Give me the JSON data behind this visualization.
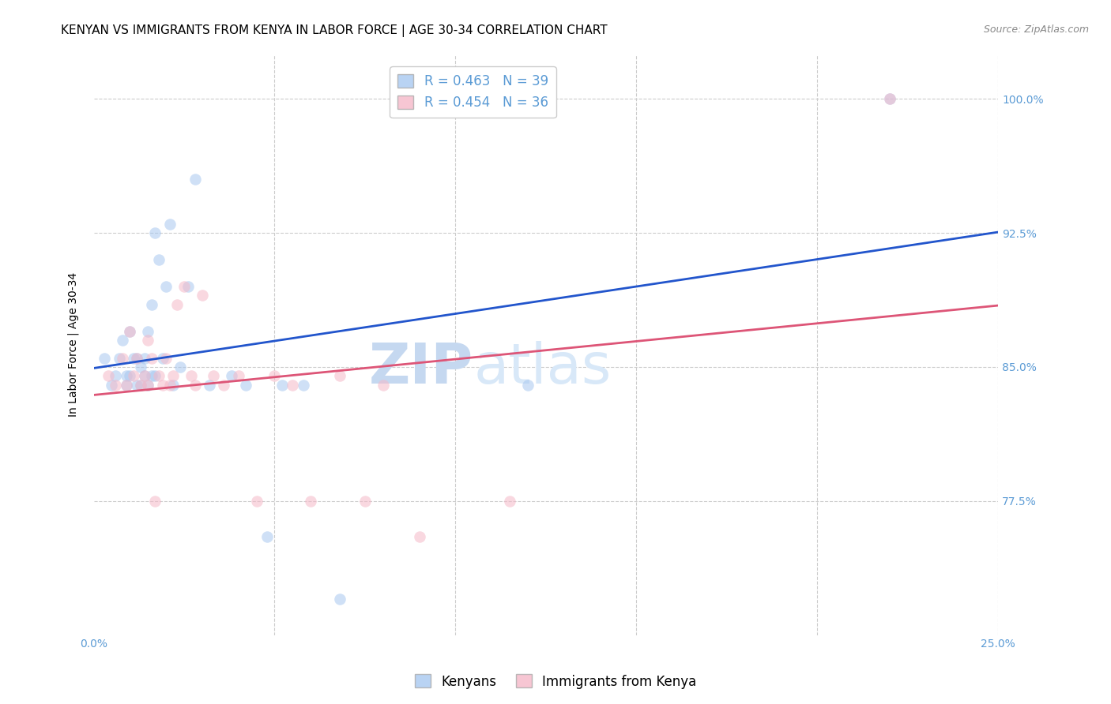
{
  "title": "KENYAN VS IMMIGRANTS FROM KENYA IN LABOR FORCE | AGE 30-34 CORRELATION CHART",
  "source": "Source: ZipAtlas.com",
  "ylabel": "In Labor Force | Age 30-34",
  "xlim": [
    0.0,
    0.25
  ],
  "ylim": [
    0.7,
    1.025
  ],
  "watermark_zip": "ZIP",
  "watermark_atlas": "atlas",
  "legend_blue_r": "R = 0.463",
  "legend_blue_n": "N = 39",
  "legend_pink_r": "R = 0.454",
  "legend_pink_n": "N = 36",
  "blue_color": "#a8c8f0",
  "pink_color": "#f5b8c8",
  "blue_line_color": "#2255cc",
  "pink_line_color": "#dd5577",
  "grid_color": "#cccccc",
  "background_color": "#ffffff",
  "title_fontsize": 11,
  "axis_label_fontsize": 10,
  "tick_fontsize": 10,
  "legend_fontsize": 12,
  "watermark_zip_fontsize": 52,
  "watermark_atlas_fontsize": 52,
  "watermark_color": "#ddeeff",
  "source_fontsize": 9,
  "marker_size": 110,
  "ytick_vals": [
    0.775,
    0.85,
    0.925,
    1.0
  ],
  "ytick_labels": [
    "77.5%",
    "85.0%",
    "92.5%",
    "100.0%"
  ],
  "kenyans_x": [
    0.003,
    0.005,
    0.006,
    0.007,
    0.008,
    0.009,
    0.009,
    0.01,
    0.01,
    0.011,
    0.012,
    0.012,
    0.013,
    0.013,
    0.014,
    0.014,
    0.015,
    0.015,
    0.016,
    0.016,
    0.017,
    0.017,
    0.018,
    0.019,
    0.02,
    0.021,
    0.022,
    0.024,
    0.026,
    0.028,
    0.032,
    0.038,
    0.042,
    0.048,
    0.052,
    0.058,
    0.068,
    0.12,
    0.22
  ],
  "kenyans_y": [
    0.855,
    0.84,
    0.845,
    0.855,
    0.865,
    0.845,
    0.84,
    0.845,
    0.87,
    0.855,
    0.84,
    0.855,
    0.84,
    0.85,
    0.845,
    0.855,
    0.84,
    0.87,
    0.845,
    0.885,
    0.845,
    0.925,
    0.91,
    0.855,
    0.895,
    0.93,
    0.84,
    0.85,
    0.895,
    0.955,
    0.84,
    0.845,
    0.84,
    0.755,
    0.84,
    0.84,
    0.72,
    0.84,
    1.0
  ],
  "immigrants_x": [
    0.004,
    0.006,
    0.008,
    0.009,
    0.01,
    0.011,
    0.012,
    0.013,
    0.014,
    0.015,
    0.015,
    0.016,
    0.017,
    0.018,
    0.019,
    0.02,
    0.021,
    0.022,
    0.023,
    0.025,
    0.027,
    0.028,
    0.03,
    0.033,
    0.036,
    0.04,
    0.045,
    0.05,
    0.055,
    0.06,
    0.068,
    0.075,
    0.08,
    0.09,
    0.115,
    0.22
  ],
  "immigrants_y": [
    0.845,
    0.84,
    0.855,
    0.84,
    0.87,
    0.845,
    0.855,
    0.84,
    0.845,
    0.84,
    0.865,
    0.855,
    0.775,
    0.845,
    0.84,
    0.855,
    0.84,
    0.845,
    0.885,
    0.895,
    0.845,
    0.84,
    0.89,
    0.845,
    0.84,
    0.845,
    0.775,
    0.845,
    0.84,
    0.775,
    0.845,
    0.775,
    0.84,
    0.755,
    0.775,
    1.0
  ]
}
